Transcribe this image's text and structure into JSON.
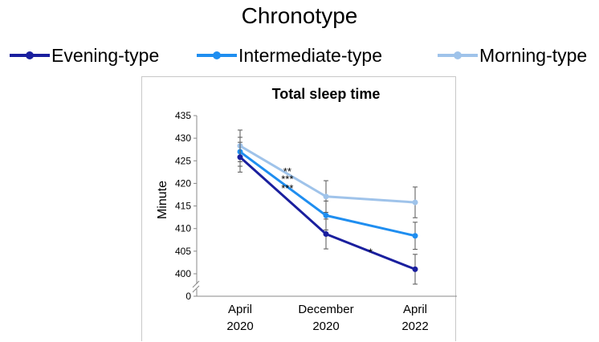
{
  "legend": {
    "title": "Chronotype",
    "items": [
      {
        "label": "Evening-type",
        "color": "#1a1f9e"
      },
      {
        "label": "Intermediate-type",
        "color": "#1f8ef0"
      },
      {
        "label": "Morning-type",
        "color": "#9fc3ea"
      }
    ]
  },
  "chart_data": {
    "type": "line",
    "title": "Total sleep time",
    "ylabel": "Minute",
    "xlabel": "",
    "categories": [
      [
        "April",
        "2020"
      ],
      [
        "December",
        "2020"
      ],
      [
        "April",
        "2022"
      ]
    ],
    "ylim": [
      400,
      435
    ],
    "yticks": [
      400,
      405,
      410,
      415,
      420,
      425,
      430,
      435
    ],
    "axis_break": true,
    "zero_tick": "0",
    "grid": false,
    "series": [
      {
        "name": "Evening-type",
        "color": "#1a1f9e",
        "values": [
          425.8,
          408.8,
          401.0
        ],
        "error": [
          3.3,
          3.3,
          3.3
        ]
      },
      {
        "name": "Intermediate-type",
        "color": "#1f8ef0",
        "values": [
          427.0,
          412.9,
          408.4
        ],
        "error": [
          3.2,
          3.2,
          3.0
        ]
      },
      {
        "name": "Morning-type",
        "color": "#9fc3ea",
        "values": [
          428.3,
          417.1,
          415.8
        ],
        "error": [
          3.5,
          3.5,
          3.4
        ]
      }
    ],
    "annotations": [
      {
        "text": "**",
        "x": 0.55,
        "y": 422.9
      },
      {
        "text": "***",
        "x": 0.55,
        "y": 421.2
      },
      {
        "text": "***",
        "x": 0.55,
        "y": 419.2
      },
      {
        "text": "*",
        "x": 1.5,
        "y": 405.1
      }
    ]
  }
}
